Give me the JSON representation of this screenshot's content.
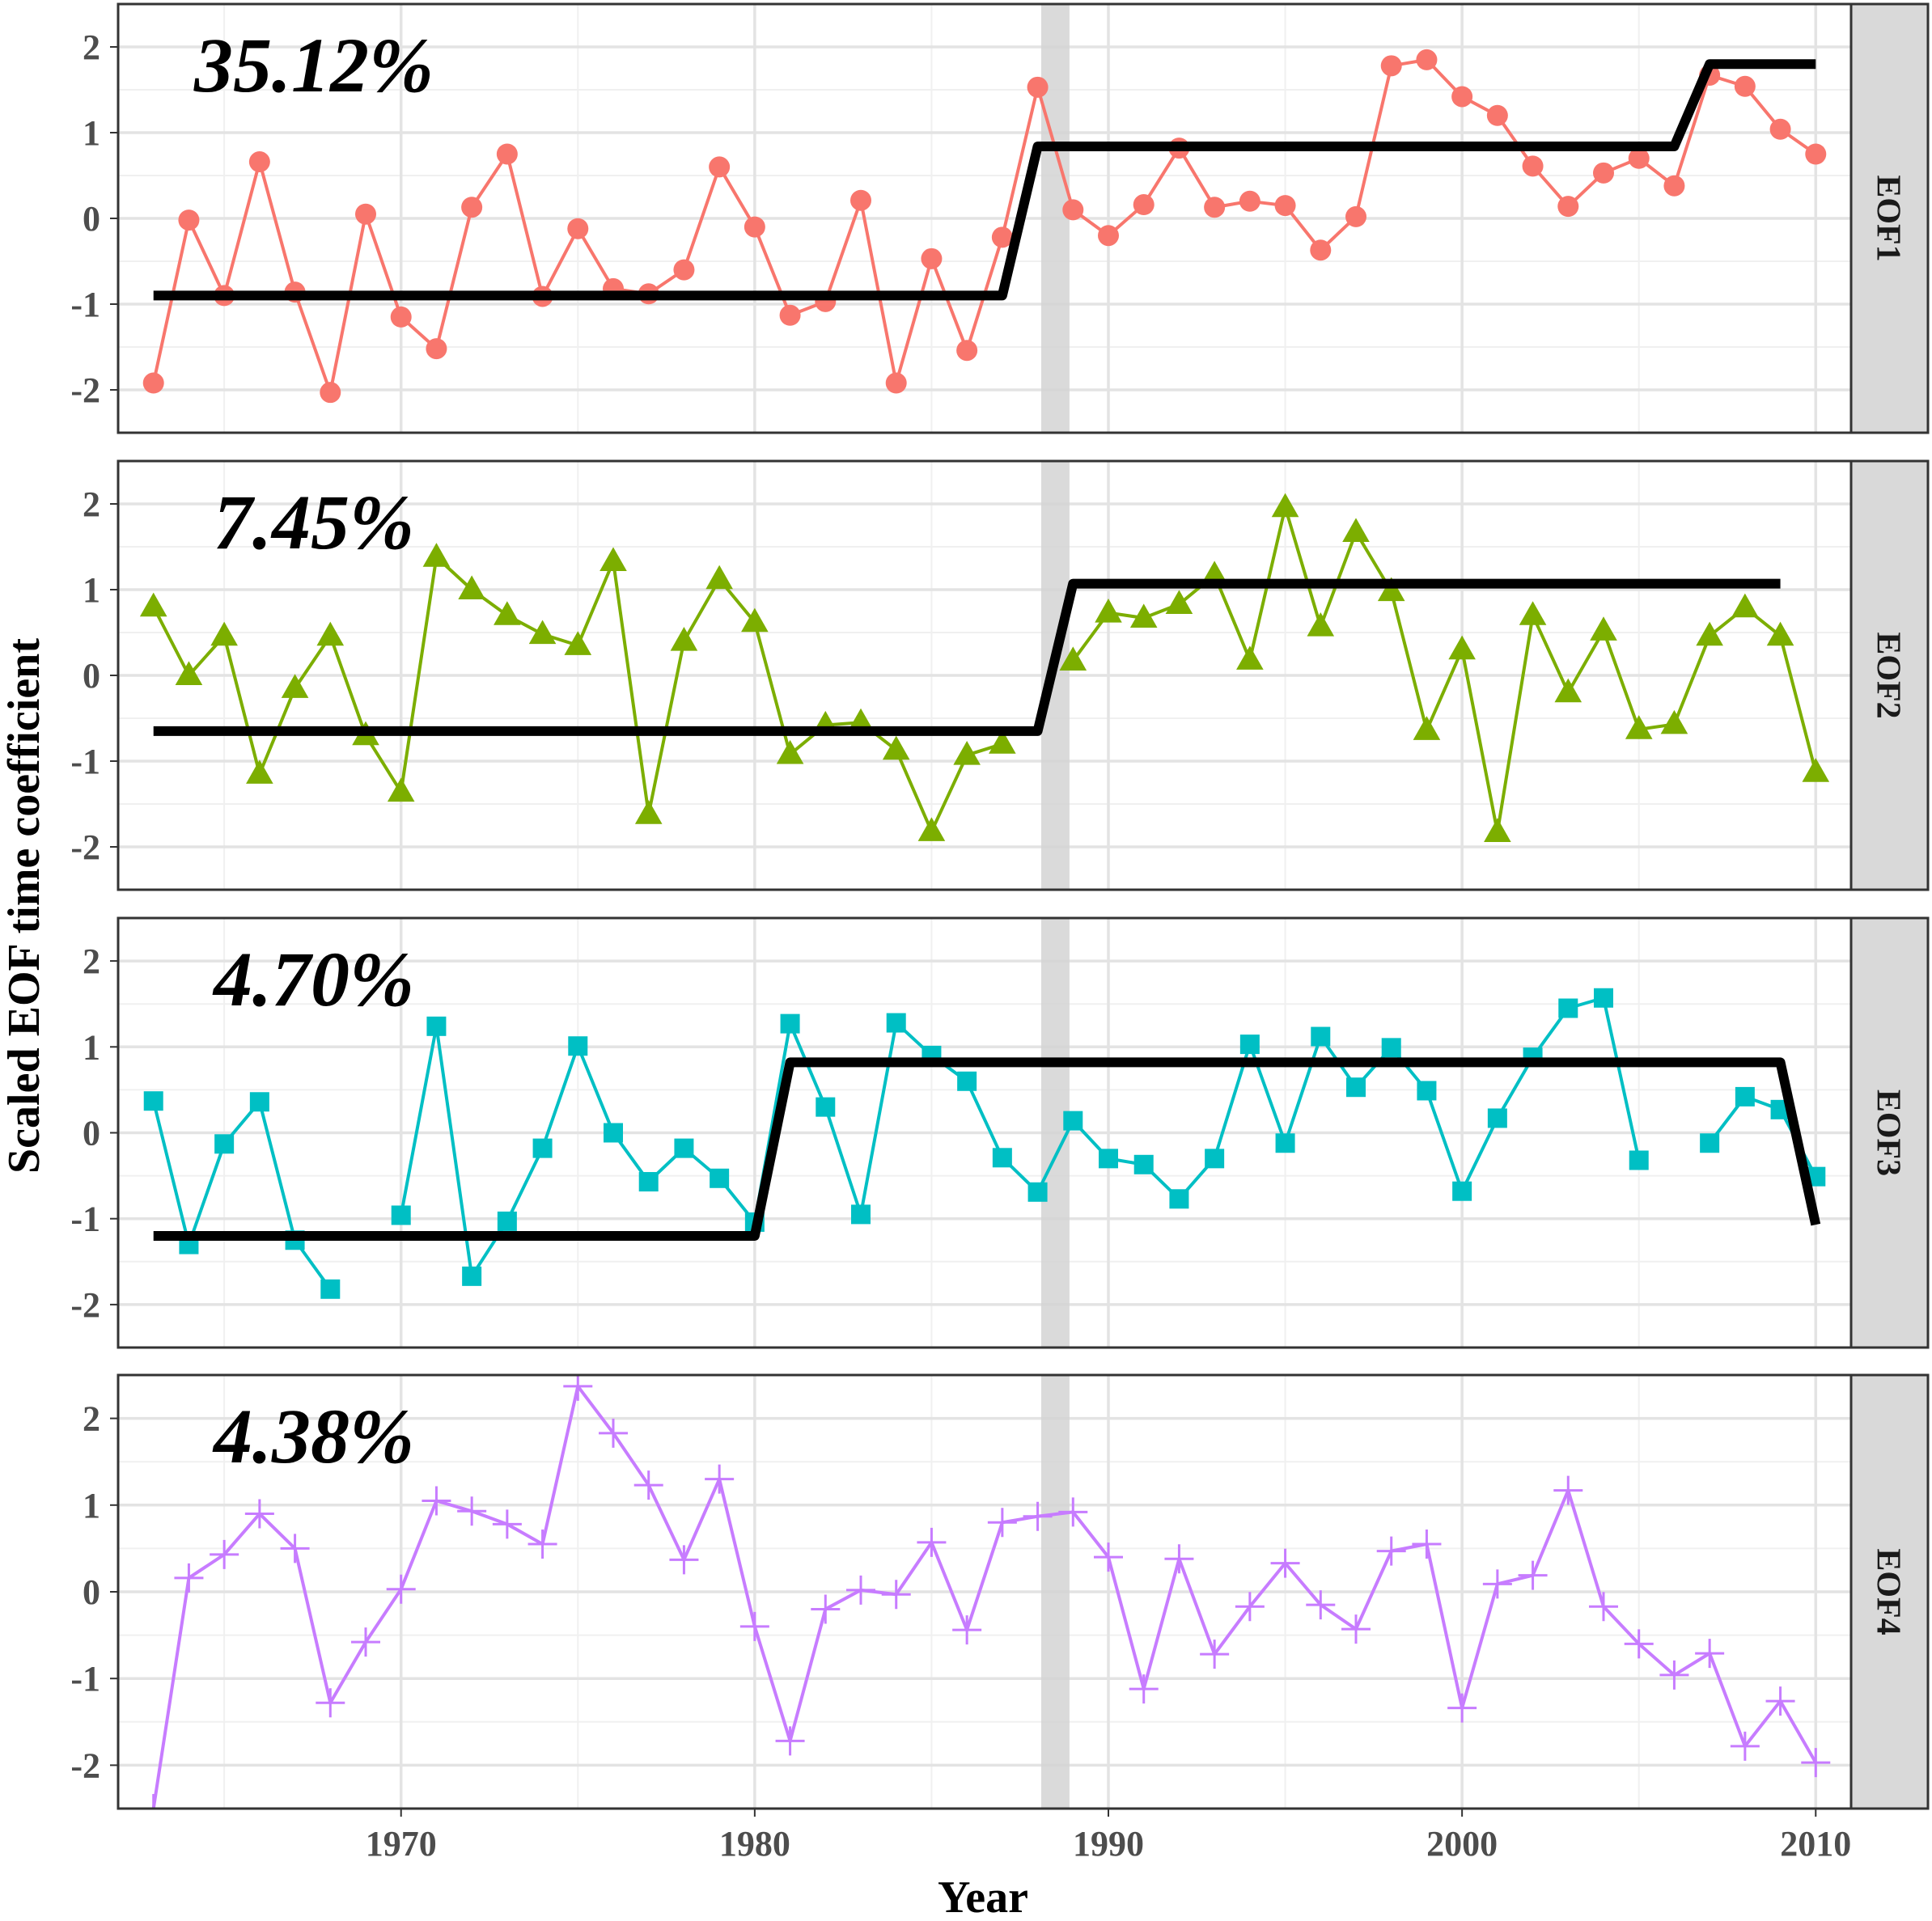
{
  "chart_data": {
    "type": "line",
    "xlabel": "Year",
    "ylabel": "Scaled EOF time coefficient",
    "xlim": [
      1962,
      2011
    ],
    "ylim": [
      -2.5,
      2.5
    ],
    "x_ticks": [
      1970,
      1980,
      1990,
      2000,
      2010
    ],
    "y_ticks": [
      2,
      1,
      0,
      -1,
      -2
    ],
    "y_tick_labels": [
      "2",
      "1",
      "0",
      "-1",
      "-2"
    ],
    "shaded_band": [
      1988.1,
      1988.9
    ],
    "grid": true,
    "panels": [
      {
        "strip": "EOF1",
        "variance_label": "35.12%",
        "color": "#F8766D",
        "marker": "circle",
        "x": [
          1963,
          1964,
          1965,
          1966,
          1967,
          1968,
          1969,
          1970,
          1971,
          1972,
          1973,
          1974,
          1975,
          1976,
          1977,
          1978,
          1979,
          1980,
          1981,
          1982,
          1983,
          1984,
          1985,
          1986,
          1987,
          1988,
          1989,
          1990,
          1991,
          1992,
          1993,
          1994,
          1995,
          1996,
          1997,
          1998,
          1999,
          2000,
          2001,
          2002,
          2003,
          2004,
          2005,
          2006,
          2007,
          2008,
          2009,
          2010
        ],
        "values": [
          -1.92,
          -0.02,
          -0.9,
          0.66,
          -0.86,
          -2.03,
          0.05,
          -1.15,
          -1.52,
          0.13,
          0.75,
          -0.91,
          -0.12,
          -0.82,
          -0.88,
          -0.6,
          0.6,
          -0.1,
          -1.13,
          -0.97,
          0.21,
          -1.92,
          -0.47,
          -1.54,
          -0.22,
          1.53,
          0.1,
          -0.2,
          0.16,
          0.82,
          0.13,
          0.2,
          0.15,
          -0.37,
          0.02,
          1.78,
          1.85,
          1.42,
          1.2,
          0.61,
          0.14,
          0.53,
          0.7,
          0.38,
          1.67,
          1.54,
          1.04,
          0.75
        ],
        "step": {
          "x": [
            1963,
            1987,
            1988,
            2006,
            2007,
            2010
          ],
          "y": [
            -0.9,
            -0.9,
            0.84,
            0.84,
            1.8,
            1.8
          ]
        }
      },
      {
        "strip": "EOF2",
        "variance_label": "7.45%",
        "color": "#7CAE00",
        "marker": "triangle",
        "x": [
          1963,
          1964,
          1965,
          1966,
          1967,
          1968,
          1969,
          1970,
          1971,
          1972,
          1973,
          1974,
          1975,
          1976,
          1977,
          1978,
          1979,
          1980,
          1981,
          1982,
          1983,
          1984,
          1985,
          1986,
          1987,
          1988,
          1989,
          1990,
          1991,
          1992,
          1993,
          1994,
          1995,
          1996,
          1997,
          1998,
          1999,
          2000,
          2001,
          2002,
          2003,
          2004,
          2005,
          2006,
          2007,
          2008,
          2009,
          2010
        ],
        "values": [
          0.8,
          0.0,
          0.46,
          -1.15,
          -0.15,
          0.46,
          -0.7,
          -1.36,
          1.38,
          1.0,
          0.7,
          0.48,
          0.35,
          1.33,
          -1.62,
          0.4,
          1.12,
          0.62,
          -0.92,
          -0.58,
          -0.55,
          -0.87,
          -1.82,
          -0.93,
          -0.8,
          null,
          0.17,
          0.73,
          0.67,
          0.83,
          1.17,
          0.18,
          1.96,
          0.57,
          1.67,
          0.98,
          -0.64,
          0.3,
          -1.83,
          0.7,
          -0.2,
          0.52,
          -0.63,
          -0.57,
          0.46,
          0.79,
          0.46,
          -1.13
        ],
        "step": {
          "x": [
            1963,
            1988,
            1989,
            2009
          ],
          "y": [
            -0.65,
            -0.65,
            1.07,
            1.07
          ]
        }
      },
      {
        "strip": "EOF3",
        "variance_label": "4.70%",
        "color": "#00BFC4",
        "marker": "square",
        "x": [
          1963,
          1964,
          1965,
          1966,
          1967,
          1968,
          1969,
          1970,
          1971,
          1972,
          1973,
          1974,
          1975,
          1976,
          1977,
          1978,
          1979,
          1980,
          1981,
          1982,
          1983,
          1984,
          1985,
          1986,
          1987,
          1988,
          1989,
          1990,
          1991,
          1992,
          1993,
          1994,
          1995,
          1996,
          1997,
          1998,
          1999,
          2000,
          2001,
          2002,
          2003,
          2004,
          2005,
          2006,
          2007,
          2008,
          2009,
          2010
        ],
        "values": [
          0.37,
          -1.3,
          -0.13,
          0.36,
          -1.25,
          -1.82,
          null,
          -0.96,
          1.24,
          -1.67,
          -1.03,
          -0.18,
          1.01,
          0.0,
          -0.57,
          -0.18,
          -0.53,
          -1.04,
          1.27,
          0.3,
          -0.95,
          1.28,
          0.9,
          0.6,
          -0.29,
          -0.69,
          0.14,
          -0.3,
          -0.37,
          -0.77,
          -0.3,
          1.03,
          -0.12,
          1.12,
          0.53,
          0.99,
          0.49,
          -0.68,
          0.17,
          0.88,
          1.45,
          1.57,
          -0.32,
          null,
          -0.12,
          0.42,
          0.27,
          -0.51
        ],
        "step": {
          "x": [
            1963,
            1980,
            1981,
            2009,
            2010
          ],
          "y": [
            -1.2,
            -1.2,
            0.82,
            0.82,
            -1.07
          ]
        }
      },
      {
        "strip": "EOF4",
        "variance_label": "4.38%",
        "color": "#C77CFF",
        "marker": "plus",
        "x": [
          1963,
          1964,
          1965,
          1966,
          1967,
          1968,
          1969,
          1970,
          1971,
          1972,
          1973,
          1974,
          1975,
          1976,
          1977,
          1978,
          1979,
          1980,
          1981,
          1982,
          1983,
          1984,
          1985,
          1986,
          1987,
          1988,
          1989,
          1990,
          1991,
          1992,
          1993,
          1994,
          1995,
          1996,
          1997,
          1998,
          1999,
          2000,
          2001,
          2002,
          2003,
          2004,
          2005,
          2006,
          2007,
          2008,
          2009,
          2010
        ],
        "values": [
          -2.5,
          0.16,
          0.43,
          0.9,
          0.5,
          -1.28,
          -0.58,
          0.03,
          1.05,
          0.93,
          0.78,
          0.55,
          2.37,
          1.83,
          1.23,
          0.37,
          1.3,
          -0.4,
          -1.72,
          -0.2,
          0.02,
          -0.03,
          0.57,
          -0.44,
          0.8,
          0.87,
          0.92,
          0.4,
          -1.12,
          0.38,
          -0.72,
          -0.17,
          0.33,
          -0.15,
          -0.43,
          0.47,
          0.55,
          -1.34,
          0.09,
          0.19,
          1.17,
          -0.17,
          -0.6,
          -0.96,
          -0.71,
          -1.78,
          -1.26,
          -1.97
        ],
        "step": null
      }
    ]
  }
}
